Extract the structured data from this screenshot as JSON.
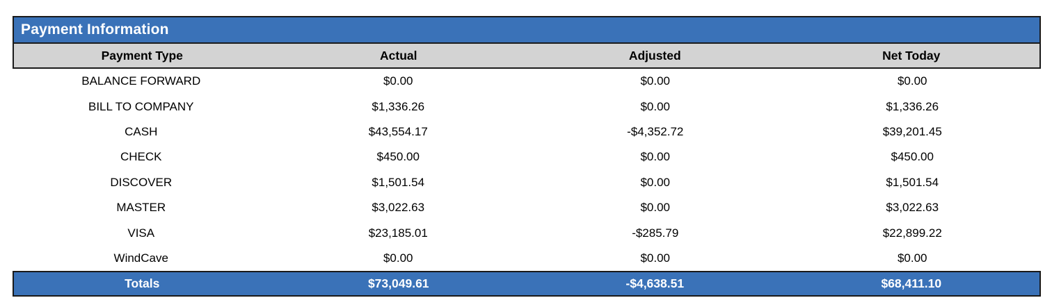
{
  "title": "Payment Information",
  "colors": {
    "accent_blue": "#3a72b8",
    "header_gray": "#d3d3d3",
    "border_black": "#1a1a1a",
    "title_text": "#ffffff"
  },
  "table": {
    "columns": {
      "payment_type": "Payment Type",
      "actual": "Actual",
      "adjusted": "Adjusted",
      "net_today": "Net Today"
    },
    "rows": [
      {
        "payment_type": "BALANCE FORWARD",
        "actual": "$0.00",
        "adjusted": "$0.00",
        "net_today": "$0.00"
      },
      {
        "payment_type": "BILL TO COMPANY",
        "actual": "$1,336.26",
        "adjusted": "$0.00",
        "net_today": "$1,336.26"
      },
      {
        "payment_type": "CASH",
        "actual": "$43,554.17",
        "adjusted": "-$4,352.72",
        "net_today": "$39,201.45"
      },
      {
        "payment_type": "CHECK",
        "actual": "$450.00",
        "adjusted": "$0.00",
        "net_today": "$450.00"
      },
      {
        "payment_type": "DISCOVER",
        "actual": "$1,501.54",
        "adjusted": "$0.00",
        "net_today": "$1,501.54"
      },
      {
        "payment_type": "MASTER",
        "actual": "$3,022.63",
        "adjusted": "$0.00",
        "net_today": "$3,022.63"
      },
      {
        "payment_type": "VISA",
        "actual": "$23,185.01",
        "adjusted": "-$285.79",
        "net_today": "$22,899.22"
      },
      {
        "payment_type": "WindCave",
        "actual": "$0.00",
        "adjusted": "$0.00",
        "net_today": "$0.00"
      }
    ],
    "totals": {
      "label": "Totals",
      "actual": "$73,049.61",
      "adjusted": "-$4,638.51",
      "net_today": "$68,411.10"
    }
  }
}
